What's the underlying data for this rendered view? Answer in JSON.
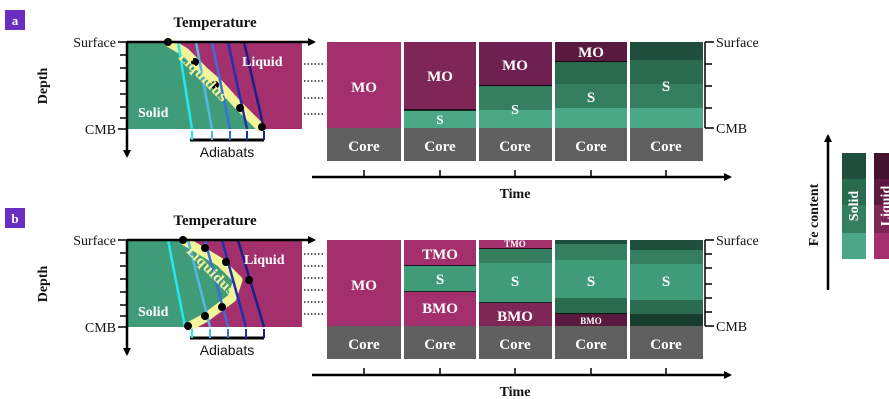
{
  "colors": {
    "purple_badge": "#6a2fc2",
    "solid_green": "#3f9b78",
    "solid_green_light": "#4aa886",
    "solid_green_mid": "#2f7a5c",
    "solid_green_dark": "#1f4f3c",
    "solid_green_darkest": "#173d2e",
    "liquid_magenta": "#a3306c",
    "liquid_mid": "#7e2757",
    "liquid_dark": "#5a1a3f",
    "liquid_darkest": "#44142f",
    "core_gray": "#606060",
    "liquidus_yellow": "#f3f39a",
    "adiabat_1": "#23e8f0",
    "adiabat_2": "#55b7e6",
    "adiabat_3": "#3a6fd8",
    "adiabat_4": "#1f2fb0",
    "adiabat_5": "#1a1f8a"
  },
  "panel_a": {
    "badge": "a",
    "title": "Temperature",
    "depth_label": "Depth",
    "surface": "Surface",
    "cmb": "CMB",
    "solid": "Solid",
    "liquid": "Liquid",
    "liquidus": "Liquidus",
    "adiabats": "Adiabats",
    "time": "Time",
    "columns": [
      {
        "labels": [
          "MO",
          "Core"
        ]
      },
      {
        "labels": [
          "MO",
          "S",
          "Core"
        ]
      },
      {
        "labels": [
          "MO",
          "S",
          "Core"
        ]
      },
      {
        "labels": [
          "MO",
          "S",
          "Core"
        ]
      },
      {
        "labels": [
          "S",
          "Core"
        ]
      }
    ],
    "surface_right": "Surface",
    "cmb_right": "CMB"
  },
  "panel_b": {
    "badge": "b",
    "title": "Temperature",
    "depth_label": "Depth",
    "surface": "Surface",
    "cmb": "CMB",
    "solid": "Solid",
    "liquid": "Liquid",
    "liquidus": "Liquidus",
    "adiabats": "Adiabats",
    "time": "Time",
    "columns": [
      {
        "labels": [
          "MO",
          "Core"
        ]
      },
      {
        "labels": [
          "TMO",
          "S",
          "BMO",
          "Core"
        ]
      },
      {
        "labels": [
          "TMO",
          "S",
          "BMO",
          "Core"
        ]
      },
      {
        "labels": [
          "S",
          "BMO",
          "Core"
        ]
      },
      {
        "labels": [
          "S",
          "Core"
        ]
      }
    ],
    "surface_right": "Surface",
    "cmb_right": "CMB"
  },
  "legend": {
    "fe_content": "Fe content",
    "solid": "Solid",
    "liquid": "Liquid"
  }
}
